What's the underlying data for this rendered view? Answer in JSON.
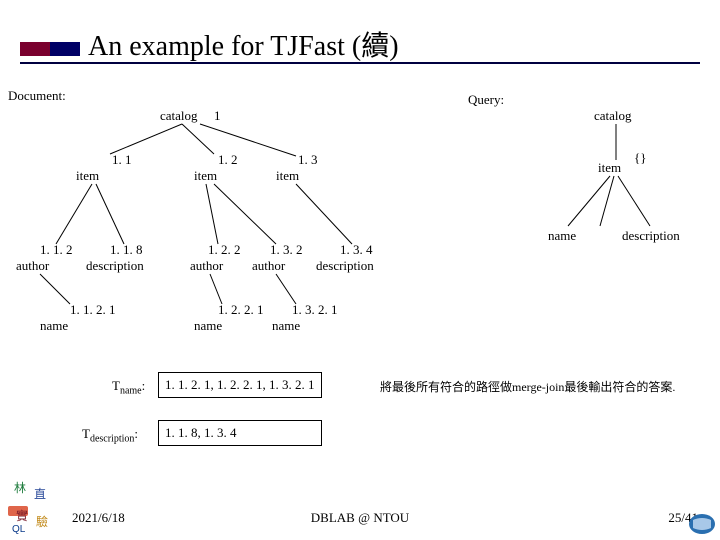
{
  "title": "An example for TJFast (續)",
  "title_bar_colors": [
    "#7a002e",
    "#000066"
  ],
  "underline_color": "#000040",
  "section_labels": {
    "document": "Document:",
    "query": "Query:"
  },
  "doc_tree": {
    "root": {
      "label": "catalog",
      "id": "1"
    },
    "children": [
      {
        "label": "item",
        "id": "1. 1",
        "children": [
          {
            "label": "author",
            "id": "1. 1. 2",
            "children": [
              {
                "label": "name",
                "id": "1. 1. 2. 1"
              }
            ]
          },
          {
            "label": "description",
            "id": "1. 1. 8"
          }
        ]
      },
      {
        "label": "item",
        "id": "1. 2",
        "children": [
          {
            "label": "author",
            "id": "1. 2. 2",
            "children": [
              {
                "label": "name",
                "id": "1. 2. 2. 1"
              }
            ]
          },
          {
            "label": "author",
            "id": "1. 3. 2",
            "children": [
              {
                "label": "name",
                "id": "1. 3. 2. 1"
              }
            ]
          }
        ]
      },
      {
        "label": "item",
        "id": "1. 3",
        "children": [
          {
            "label": "description",
            "id": "1. 3. 4"
          }
        ]
      }
    ]
  },
  "query_tree": {
    "root": "catalog",
    "item": {
      "label": "item",
      "annotation": "{}"
    },
    "leaves": [
      "name",
      "description"
    ]
  },
  "t_results": {
    "name": {
      "label_html": "T<sub>name</sub>:",
      "value": "1. 1. 2. 1,  1. 2. 2. 1, 1. 3. 2. 1"
    },
    "description": {
      "label_html": "T<sub>description</sub>:",
      "value": "1. 1. 8,  1. 3. 4"
    }
  },
  "note_cn": "將最後所有符合的路徑做merge-join最後輸出符合的答案.",
  "footer": {
    "date": "2021/6/18",
    "center": "DBLAB @ NTOU",
    "right": "25/41"
  },
  "styling": {
    "font_family": "Times New Roman",
    "node_fontsize": 13,
    "title_fontsize": 28,
    "edge_color": "#000000",
    "edge_width": 1,
    "background": "#ffffff"
  }
}
